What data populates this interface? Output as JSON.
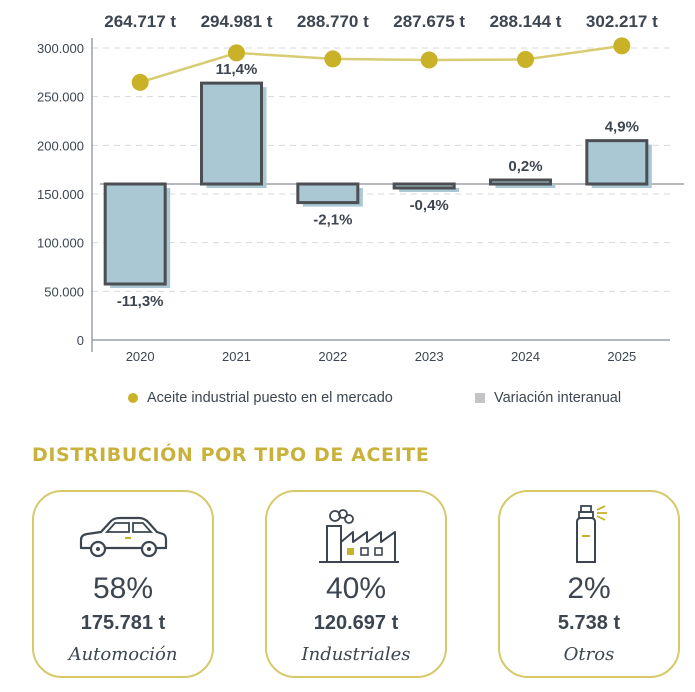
{
  "chart_data": {
    "type": "bar+line",
    "categories": [
      "2020",
      "2021",
      "2022",
      "2023",
      "2024",
      "2025"
    ],
    "line_series": {
      "name": "Aceite industrial puesto en el mercado",
      "values": [
        264717,
        294981,
        288770,
        287675,
        288144,
        302217
      ],
      "value_labels": [
        "264.717 t",
        "294.981 t",
        "288.770 t",
        "287.675 t",
        "288.144 t",
        "302.217 t"
      ],
      "color": "#c9b228"
    },
    "bar_series": {
      "name": "Variación interanual",
      "values": [
        -11.3,
        11.4,
        -2.1,
        -0.4,
        0.2,
        4.9
      ],
      "value_labels": [
        "-11,3%",
        "11,4%",
        "-2,1%",
        "-0,4%",
        "0,2%",
        "4,9%"
      ],
      "fill_color": "#a9c8d3",
      "outline_color": "#4b4e52",
      "legend_color": "#c3c4c6"
    },
    "y_axis": {
      "range": [
        0,
        300000
      ],
      "ticks": [
        0,
        50000,
        100000,
        150000,
        200000,
        250000,
        300000
      ],
      "tick_labels": [
        "0",
        "50.000",
        "100.000",
        "150.000",
        "200.000",
        "250.000",
        "300.000"
      ]
    },
    "grid": true,
    "legend_position": "bottom"
  },
  "distribution": {
    "title": "Distribución por tipo de aceite",
    "items": [
      {
        "icon": "car-icon",
        "percent": "58%",
        "tons": "175.781 t",
        "label": "Automoción"
      },
      {
        "icon": "factory-icon",
        "percent": "40%",
        "tons": "120.697 t",
        "label": "Industriales"
      },
      {
        "icon": "spray-can-icon",
        "percent": "2%",
        "tons": "5.738 t",
        "label": "Otros"
      }
    ]
  }
}
